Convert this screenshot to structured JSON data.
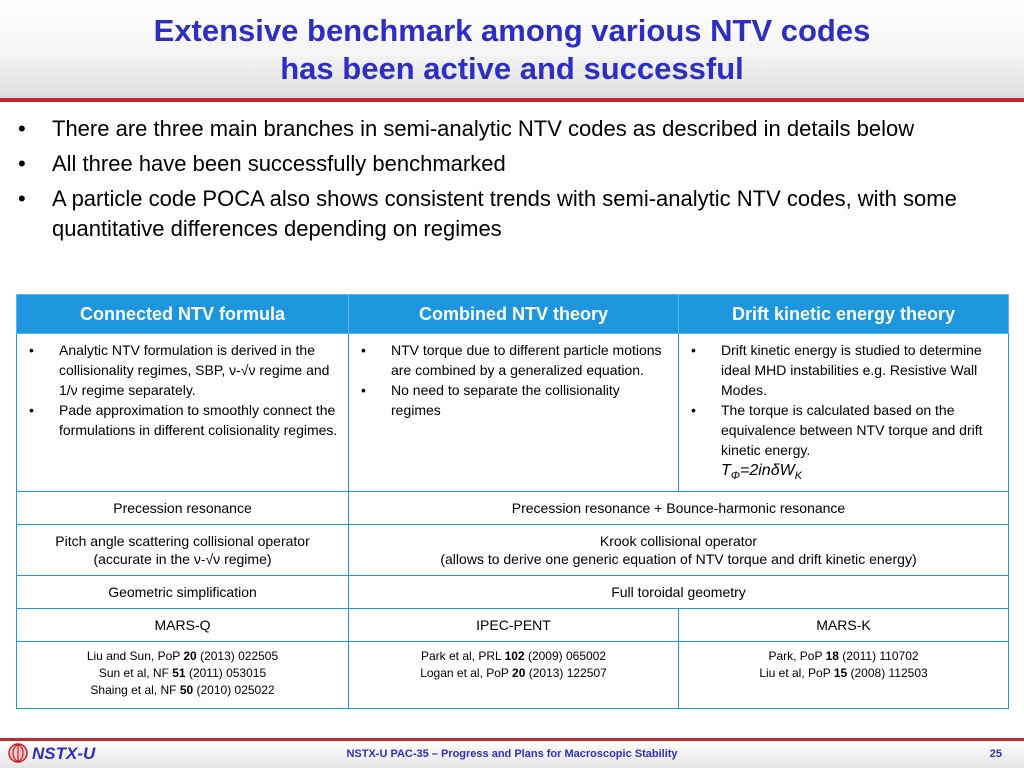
{
  "title": {
    "line1": "Extensive benchmark among various NTV codes",
    "line2": "has been active and successful"
  },
  "bullets": [
    "There are three main branches in semi-analytic NTV codes as described in details below",
    "All three have been successfully benchmarked",
    "A particle code POCA also shows consistent trends with semi-analytic NTV codes, with some quantitative differences depending on regimes"
  ],
  "bullet_glyph": "•",
  "table": {
    "headers": [
      "Connected NTV formula",
      "Combined NTV theory",
      "Drift kinetic energy theory"
    ],
    "col1_items": [
      "Analytic NTV formulation is derived in the collisionality regimes, SBP, ν-√ν regime and 1/ν regime separately.",
      "Pade approximation to smoothly connect the formulations in different colisionality regimes."
    ],
    "col2_items": [
      "NTV torque due to different particle motions are combined by a generalized equation.",
      "No need to separate the collisionality regimes"
    ],
    "col3_items": [
      "Drift kinetic energy is studied to determine ideal MHD instabilities e.g. Resistive Wall Modes.",
      "The torque is calculated based on the equivalence between NTV torque and drift kinetic energy."
    ],
    "formula": {
      "T": "T",
      "sub_phi": "Φ",
      "mid": "=2inδW",
      "sub_k": "K"
    },
    "resonance": {
      "left": "Precession resonance",
      "right": "Precession resonance + Bounce-harmonic resonance"
    },
    "operator": {
      "left_line1": "Pitch angle scattering collisional operator",
      "left_line2": "(accurate in the ν-√ν regime)",
      "right_line1": "Krook collisional operator",
      "right_line2": "(allows to derive one generic equation of NTV torque and drift kinetic energy)"
    },
    "geometry": {
      "left": "Geometric simplification",
      "right": "Full toroidal geometry"
    },
    "codes": [
      "MARS-Q",
      "IPEC-PENT",
      "MARS-K"
    ],
    "refs": [
      [
        {
          "pre": "Liu and Sun, PoP ",
          "bold": "20",
          "post": " (2013) 022505"
        },
        {
          "pre": "Sun et al, NF ",
          "bold": "51",
          "post": " (2011) 053015"
        },
        {
          "pre": "Shaing et al, NF ",
          "bold": "50",
          "post": " (2010) 025022"
        }
      ],
      [
        {
          "pre": "Park et al, PRL ",
          "bold": "102",
          "post": " (2009) 065002"
        },
        {
          "pre": "Logan et al, PoP ",
          "bold": "20",
          "post": " (2013) 122507"
        }
      ],
      [
        {
          "pre": "Park, PoP ",
          "bold": "18",
          "post": " (2011) 110702"
        },
        {
          "pre": "Liu et al, PoP ",
          "bold": "15",
          "post": " (2008) 112503"
        }
      ]
    ]
  },
  "footer": {
    "logo_text": "NSTX-U",
    "center_text": "NSTX-U PAC-35 – Progress and Plans for Macroscopic Stability",
    "page_number": "25"
  },
  "colors": {
    "title_blue": "#2e2ec4",
    "header_blue": "#1e96de",
    "accent_red": "#c0282d"
  }
}
